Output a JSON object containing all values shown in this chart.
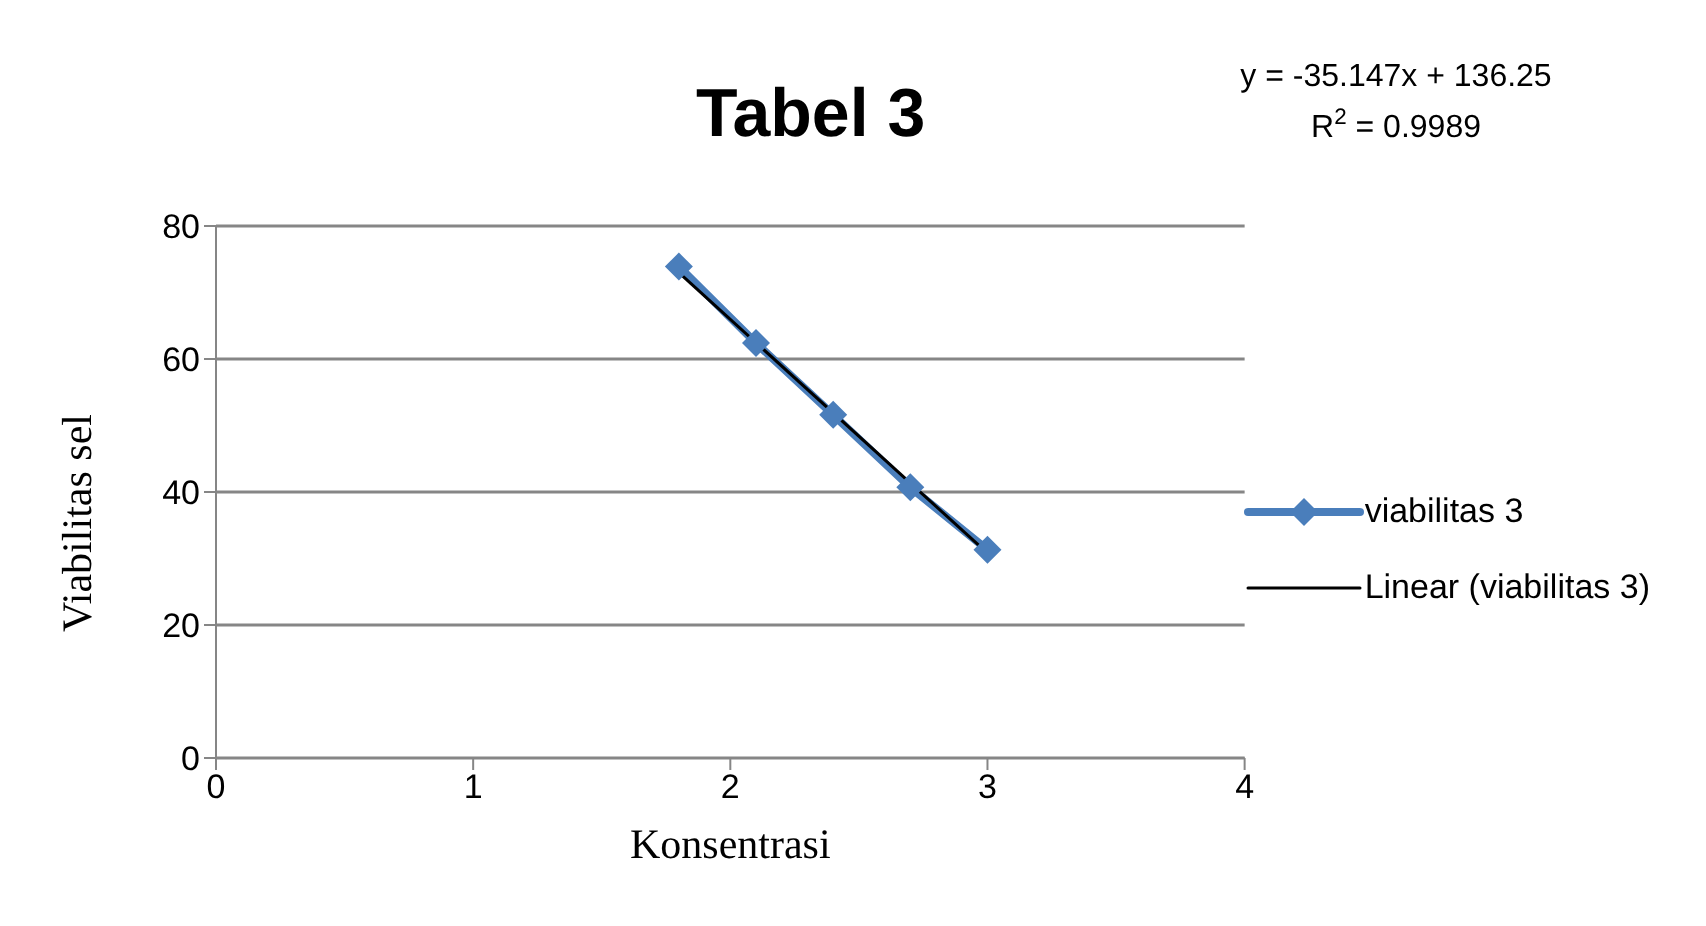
{
  "chart_data": {
    "type": "line",
    "title": "Tabel 3",
    "xlabel": "Konsentrasi",
    "ylabel": "Viabilitas sel",
    "x": [
      1.8,
      2.1,
      2.4,
      2.7,
      3.0
    ],
    "series": [
      {
        "name": "viabilitas 3",
        "color": "#4a7ebb",
        "marker": "diamond",
        "values": [
          73.9,
          62.4,
          51.6,
          40.7,
          31.3
        ]
      },
      {
        "name": "Linear (viabilitas 3)",
        "color": "#000000",
        "marker": "none",
        "x": [
          1.8,
          3.0
        ],
        "values": [
          73.0,
          30.8
        ]
      }
    ],
    "xlim": [
      0,
      4
    ],
    "xticks": [
      0,
      1,
      2,
      3,
      4
    ],
    "ylim": [
      0,
      80
    ],
    "yticks": [
      0,
      20,
      40,
      60,
      80
    ],
    "grid": "y",
    "legend": "right",
    "annotations": [
      "y = -35.147x + 136.25",
      "R$^{2}$ = 0.9989"
    ]
  }
}
